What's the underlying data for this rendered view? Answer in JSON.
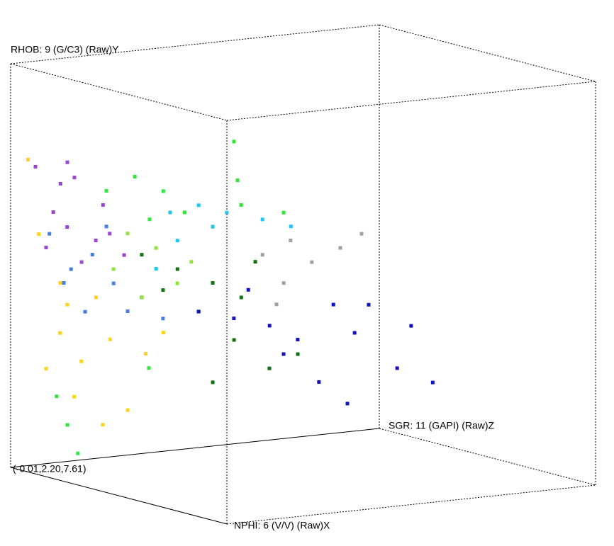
{
  "chart_data": {
    "type": "scatter3d",
    "x_label": "NPHI: 6 (V/V) (Raw)X",
    "y_label": "RHOB: 9 (G/C3) (Raw)Y",
    "z_label": "SGR: 11 (GAPI) (Raw)Z",
    "origin_label": "(-0.01,2.20,7.61)",
    "xlim": [
      -0.01,
      0.59
    ],
    "ylim": [
      2.2,
      3.0
    ],
    "zlim": [
      7.61,
      207.61
    ],
    "series": [
      {
        "color": "#ffd21e",
        "x": [
          0.023,
          0.092,
          0.132,
          0.191,
          0.112,
          0.23,
          0.171,
          0.329,
          0.151,
          0.279,
          0.073,
          0.378,
          0.053,
          0.21
        ],
        "y": [
          2.815,
          2.582,
          2.548,
          2.572,
          2.488,
          2.496,
          2.443,
          2.486,
          2.369,
          2.365,
          2.41,
          2.537,
          2.673,
          2.323
        ],
        "values": [
          10.6,
          14.6,
          10.6,
          14.6,
          10.6,
          14.6,
          10.6,
          14.6,
          10.6,
          14.6,
          10.6,
          14.6,
          10.6,
          14.6
        ]
      },
      {
        "color": "#9a44d2",
        "x": [
          0.018,
          0.067,
          0.126,
          0.047,
          0.106,
          0.185,
          0.224,
          0.027,
          0.146,
          0.086,
          0.264,
          0.165
        ],
        "y": [
          2.798,
          2.772,
          2.797,
          2.712,
          2.695,
          2.752,
          2.704,
          2.638,
          2.633,
          2.818,
          2.669,
          2.678
        ],
        "values": [
          15.6,
          19.6,
          15.6,
          19.6,
          15.6,
          19.6,
          15.6,
          19.6,
          15.6,
          19.6,
          15.6,
          19.6
        ]
      },
      {
        "color": "#4a7ee0",
        "x": [
          0.021,
          0.081,
          0.14,
          0.199,
          0.277,
          0.12,
          0.336,
          0.238,
          0.061,
          0.179
        ],
        "y": [
          2.663,
          2.604,
          2.644,
          2.598,
          2.585,
          2.527,
          2.554,
          2.55,
          2.573,
          2.707
        ],
        "values": [
          22.6,
          22.6,
          22.6,
          22.6,
          22.6,
          22.6,
          22.6,
          22.6,
          22.6,
          22.6
        ]
      },
      {
        "color": "#8ee63c",
        "x": [
          0.161,
          0.24,
          0.299,
          0.201,
          0.338,
          0.122
        ],
        "y": [
          2.684,
          2.67,
          2.611,
          2.565,
          2.661,
          2.606
        ],
        "values": [
          37.6,
          37.6,
          37.6,
          37.6,
          37.6,
          37.6
        ]
      },
      {
        "color": "#2ee83a",
        "x": [
          0.051,
          0.13,
          0.209,
          0.268,
          0.346,
          0.171,
          0.425,
          0.543,
          0.405,
          0.415,
          0.122,
          0.151,
          0.092,
          0.348
        ],
        "y": [
          2.744,
          2.787,
          2.773,
          2.742,
          2.728,
          2.71,
          2.786,
          2.793,
          2.908,
          2.833,
          2.307,
          2.256,
          2.358,
          2.462
        ],
        "values": [
          47.6,
          47.6,
          47.6,
          47.6,
          47.6,
          47.6,
          47.6,
          47.6,
          47.6,
          47.6,
          12.6,
          12.6,
          12.6,
          12.6
        ]
      },
      {
        "color": "#22c4f0",
        "x": [
          0.177,
          0.256,
          0.334,
          0.433,
          0.295,
          0.197,
          0.512,
          0.138
        ],
        "y": [
          2.721,
          2.75,
          2.75,
          2.755,
          2.715,
          2.669,
          2.756,
          2.602
        ],
        "values": [
          57.6,
          57.6,
          57.6,
          57.6,
          57.6,
          57.6,
          57.6,
          57.6
        ]
      },
      {
        "color": "#a0a0a0",
        "x": [
          0.075,
          0.153,
          0.212,
          0.291,
          0.134,
          0.114,
          0.35
        ],
        "y": [
          2.591,
          2.634,
          2.602,
          2.645,
          2.546,
          2.5,
          2.684
        ],
        "values": [
          127.6,
          127.6,
          127.6,
          127.6,
          127.6,
          127.6,
          127.6
        ]
      },
      {
        "color": "#127212",
        "x": [
          0.047,
          0.146,
          0.244,
          0.205,
          0.323,
          0.303,
          0.401,
          0.244,
          0.48,
          0.362,
          0.106
        ],
        "y": [
          2.609,
          2.599,
          2.59,
          2.526,
          2.576,
          2.488,
          2.45,
          2.393,
          2.493,
          2.654,
          2.55
        ],
        "values": [
          67.6,
          67.6,
          67.6,
          67.6,
          67.6,
          67.6,
          67.6,
          67.6,
          67.6,
          67.6,
          67.6
        ]
      },
      {
        "color": "#1212c0",
        "x": [
          0.0,
          0.098,
          0.197,
          0.275,
          0.374,
          0.433,
          0.472,
          0.551,
          0.394,
          0.334,
          0.236,
          0.138,
          0.413,
          0.334
        ],
        "y": [
          2.472,
          2.477,
          2.481,
          2.468,
          2.556,
          2.511,
          2.574,
          2.463,
          2.386,
          2.395,
          2.432,
          2.541,
          2.367,
          2.487
        ],
        "values": [
          107.6,
          107.6,
          107.6,
          107.6,
          107.6,
          107.6,
          107.6,
          107.6,
          157.6,
          107.6,
          107.6,
          107.6,
          107.6,
          157.6
        ]
      }
    ]
  }
}
